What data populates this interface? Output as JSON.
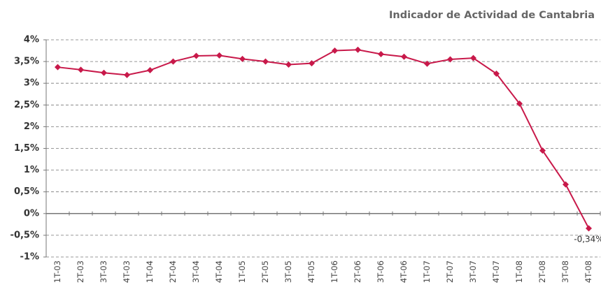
{
  "chart_data": {
    "type": "line",
    "title": "Indicador de Actividad de Cantabria",
    "categories": [
      "1T-03",
      "2T-03",
      "3T-03",
      "4T-03",
      "1T-04",
      "2T-04",
      "3T-04",
      "4T-04",
      "1T-05",
      "2T-05",
      "3T-05",
      "4T-05",
      "1T-06",
      "2T-06",
      "3T-06",
      "4T-06",
      "1T-07",
      "2T-07",
      "3T-07",
      "4T-07",
      "1T-08",
      "2T-08",
      "3T-08",
      "4T-08"
    ],
    "series": [
      {
        "name": "Indicador de Actividad",
        "color": "#c8194a",
        "values": [
          3.37,
          3.31,
          3.24,
          3.19,
          3.3,
          3.5,
          3.63,
          3.64,
          3.56,
          3.5,
          3.43,
          3.46,
          3.75,
          3.77,
          3.67,
          3.61,
          3.45,
          3.55,
          3.58,
          3.22,
          2.53,
          1.45,
          0.67,
          -0.34
        ],
        "value_labels": [
          null,
          null,
          null,
          null,
          null,
          null,
          null,
          null,
          null,
          null,
          null,
          null,
          null,
          null,
          null,
          null,
          null,
          null,
          null,
          null,
          null,
          null,
          null,
          "-0,34%"
        ]
      }
    ],
    "ylim": [
      -1,
      4
    ],
    "yticks": [
      {
        "value": -1,
        "label": "-1%"
      },
      {
        "value": -0.5,
        "label": "-0,5%"
      },
      {
        "value": 0,
        "label": "0%"
      },
      {
        "value": 0.5,
        "label": "0,5%"
      },
      {
        "value": 1,
        "label": "1%"
      },
      {
        "value": 1.5,
        "label": "1,5%"
      },
      {
        "value": 2,
        "label": "2%"
      },
      {
        "value": 2.5,
        "label": "2,5%"
      },
      {
        "value": 3,
        "label": "3%"
      },
      {
        "value": 3.5,
        "label": "3,5%"
      },
      {
        "value": 4,
        "label": "4%"
      }
    ],
    "grid": true
  }
}
